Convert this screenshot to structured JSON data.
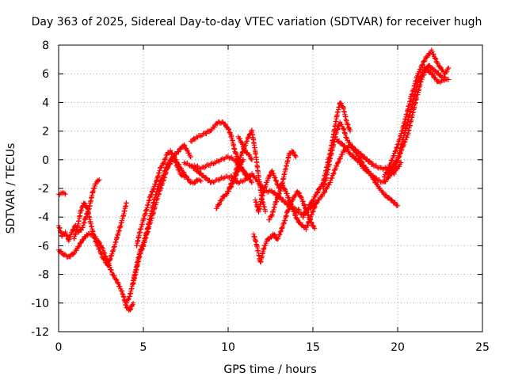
{
  "chart_data": {
    "type": "scatter",
    "title": "Day 363 of 2025, Sidereal Day-to-day VTEC variation (SDTVAR) for receiver hugh",
    "xlabel": "GPS time / hours",
    "ylabel": "SDTVAR / TECUs",
    "xlim": [
      0,
      25
    ],
    "ylim": [
      -12,
      8
    ],
    "xticks": [
      "0",
      "5",
      "10",
      "15",
      "20",
      "25"
    ],
    "yticks": [
      "-12",
      "-10",
      "-8",
      "-6",
      "-4",
      "-2",
      "0",
      "2",
      "4",
      "6",
      "8"
    ],
    "grid": true,
    "marker": "+",
    "color": "#ff0000",
    "series": [
      {
        "x": [
          0.0,
          0.2,
          0.4,
          0.6,
          0.8,
          1.0,
          1.2,
          1.4,
          1.6,
          1.8,
          2.0,
          2.2,
          2.4
        ],
        "y": [
          -4.6,
          -5.3,
          -5.1,
          -5.6,
          -5.0,
          -4.6,
          -5.0,
          -4.8,
          -4.0,
          -3.4,
          -2.3,
          -1.6,
          -1.4
        ]
      },
      {
        "x": [
          0.0,
          0.3,
          0.6,
          0.9,
          1.1,
          1.4,
          1.7,
          2.0,
          2.3,
          2.6,
          2.9,
          3.2,
          3.5,
          3.8,
          4.0,
          4.2,
          4.4
        ],
        "y": [
          -6.3,
          -6.6,
          -6.8,
          -6.5,
          -6.2,
          -5.6,
          -5.2,
          -5.2,
          -5.6,
          -6.2,
          -7.2,
          -8.0,
          -8.6,
          -9.4,
          -10.3,
          -10.5,
          -10.0
        ]
      },
      {
        "x": [
          0.9,
          1.1,
          1.3,
          1.5,
          1.7,
          1.9,
          2.1,
          2.3,
          2.6,
          2.9,
          3.2,
          3.5,
          3.8,
          4.0
        ],
        "y": [
          -5.5,
          -4.8,
          -3.6,
          -3.0,
          -3.4,
          -4.5,
          -5.4,
          -6.0,
          -6.8,
          -7.4,
          -6.4,
          -5.2,
          -4.0,
          -3.0
        ]
      },
      {
        "x": [
          0.0,
          0.2,
          0.4
        ],
        "y": [
          -2.4,
          -2.3,
          -2.4
        ]
      },
      {
        "x": [
          4.0,
          4.2,
          4.4,
          4.6,
          4.8,
          5.0,
          5.2,
          5.4,
          5.6,
          5.8,
          6.0,
          6.2,
          6.4,
          6.6,
          6.8,
          7.0,
          7.2,
          7.4,
          7.6,
          7.8
        ],
        "y": [
          -10.0,
          -9.5,
          -8.5,
          -7.4,
          -6.4,
          -5.8,
          -5.0,
          -4.0,
          -3.0,
          -2.2,
          -1.5,
          -1.0,
          -0.4,
          0.0,
          0.3,
          0.5,
          0.8,
          1.0,
          0.6,
          0.2
        ]
      },
      {
        "x": [
          4.4,
          4.6,
          4.8,
          5.0,
          5.2,
          5.4,
          5.6,
          5.8,
          6.0,
          6.2,
          6.4,
          6.6,
          6.8,
          7.0,
          7.2,
          7.4,
          7.6,
          7.8,
          8.0,
          8.2,
          8.4
        ],
        "y": [
          -8.6,
          -7.6,
          -6.6,
          -6.0,
          -5.2,
          -4.4,
          -3.6,
          -2.8,
          -2.0,
          -1.4,
          -0.6,
          -0.2,
          0.2,
          -0.2,
          -0.6,
          -1.0,
          -1.3,
          -1.6,
          -1.6,
          -1.4,
          -1.5
        ]
      },
      {
        "x": [
          4.6,
          4.8,
          5.0,
          5.2,
          5.4,
          5.6,
          5.8,
          6.0,
          6.2,
          6.4,
          6.6,
          6.8,
          7.0,
          7.2,
          7.4
        ],
        "y": [
          -6.0,
          -5.0,
          -4.2,
          -3.4,
          -2.6,
          -2.0,
          -1.4,
          -0.6,
          -0.2,
          0.4,
          0.6,
          0.2,
          -0.5,
          -1.0,
          -1.2
        ]
      },
      {
        "x": [
          7.8,
          8.2,
          8.6,
          9.0,
          9.4,
          9.7,
          10.0,
          10.2,
          10.4,
          10.6,
          10.8,
          11.0,
          11.2,
          11.4
        ],
        "y": [
          1.3,
          1.6,
          1.8,
          2.1,
          2.6,
          2.6,
          2.2,
          1.6,
          0.6,
          0.0,
          -0.6,
          -1.0,
          -1.2,
          -1.6
        ]
      },
      {
        "x": [
          7.4,
          7.8,
          8.2,
          8.6,
          9.0,
          9.4,
          9.8,
          10.2,
          10.6,
          11.0,
          11.4,
          11.8,
          12.2,
          12.6,
          13.0,
          13.4,
          13.8,
          14.2
        ],
        "y": [
          -0.2,
          -0.4,
          -0.8,
          -1.2,
          -1.6,
          -1.4,
          -1.2,
          -1.2,
          -1.6,
          -1.4,
          -1.0,
          -1.6,
          -2.2,
          -2.2,
          -2.6,
          -3.0,
          -3.4,
          -3.5
        ]
      },
      {
        "x": [
          8.0,
          8.4,
          8.8,
          9.2,
          9.6,
          10.0,
          10.4,
          10.8,
          11.2
        ],
        "y": [
          -0.4,
          -0.6,
          -0.4,
          -0.2,
          0.0,
          0.2,
          0.0,
          -0.6,
          -1.2
        ]
      },
      {
        "x": [
          9.3,
          9.5,
          9.7,
          9.9,
          10.1,
          10.3,
          10.5,
          10.7,
          10.9
        ],
        "y": [
          -3.4,
          -3.0,
          -2.6,
          -2.4,
          -2.0,
          -1.6,
          -1.0,
          -0.4,
          0.0
        ]
      },
      {
        "x": [
          10.0,
          10.2,
          10.4,
          10.6,
          10.8,
          11.0,
          11.2,
          11.4,
          11.6,
          11.8,
          12.0,
          12.2
        ],
        "y": [
          -2.2,
          -1.6,
          -1.0,
          -0.2,
          0.4,
          1.0,
          1.6,
          2.0,
          0.6,
          -1.2,
          -2.8,
          -3.6
        ]
      },
      {
        "x": [
          10.6,
          10.8,
          11.0,
          11.2,
          11.4
        ],
        "y": [
          1.6,
          1.2,
          0.6,
          0.4,
          0.0
        ]
      },
      {
        "x": [
          11.5,
          11.7,
          11.9,
          12.1,
          12.3,
          12.5,
          12.7,
          12.9,
          13.1,
          13.3,
          13.5,
          13.7,
          13.9,
          14.1,
          14.3,
          14.5,
          14.7,
          14.9,
          15.1
        ],
        "y": [
          -5.2,
          -6.0,
          -7.2,
          -6.2,
          -5.6,
          -5.4,
          -5.2,
          -5.6,
          -5.0,
          -4.4,
          -3.6,
          -3.0,
          -2.6,
          -2.2,
          -2.6,
          -3.2,
          -3.8,
          -4.4,
          -4.8
        ]
      },
      {
        "x": [
          11.6,
          11.8,
          12.0,
          12.2,
          12.4,
          12.6,
          12.8,
          13.0,
          13.2,
          13.4,
          13.6,
          13.8,
          14.0
        ],
        "y": [
          -2.8,
          -3.6,
          -2.6,
          -1.8,
          -1.2,
          -0.8,
          -1.4,
          -2.0,
          -1.6,
          -0.6,
          0.4,
          0.6,
          0.2
        ]
      },
      {
        "x": [
          12.4,
          12.6,
          12.8,
          13.0,
          13.2,
          13.4,
          13.6,
          13.8,
          14.0,
          14.2,
          14.4,
          14.6,
          14.8,
          15.0,
          15.2
        ],
        "y": [
          -4.2,
          -3.8,
          -3.0,
          -2.4,
          -1.8,
          -2.2,
          -2.8,
          -3.4,
          -4.0,
          -4.4,
          -4.6,
          -4.8,
          -4.2,
          -3.6,
          -3.0
        ]
      },
      {
        "x": [
          14.4,
          14.6,
          14.8,
          15.0,
          15.2,
          15.4,
          15.6,
          15.8,
          16.0,
          16.2,
          16.4,
          16.6,
          16.8,
          17.0,
          17.2
        ],
        "y": [
          -4.0,
          -3.6,
          -3.2,
          -2.8,
          -2.4,
          -2.0,
          -1.6,
          -0.6,
          0.4,
          1.6,
          3.0,
          4.0,
          3.6,
          2.6,
          2.0
        ]
      },
      {
        "x": [
          14.0,
          14.4,
          14.8,
          15.2,
          15.6,
          16.0,
          16.4,
          16.8,
          17.2,
          17.6,
          18.0,
          18.4,
          18.8,
          19.2,
          19.6,
          20.0
        ],
        "y": [
          -3.6,
          -3.8,
          -3.4,
          -3.0,
          -2.4,
          -1.6,
          -0.4,
          0.6,
          1.0,
          0.4,
          -0.4,
          -1.0,
          -1.8,
          -2.4,
          -2.8,
          -3.2
        ]
      },
      {
        "x": [
          15.6,
          15.8,
          16.0,
          16.2,
          16.4,
          16.6,
          16.8,
          17.0,
          17.4,
          17.8,
          18.2,
          18.6,
          19.0,
          19.4,
          19.8
        ],
        "y": [
          -2.0,
          -1.2,
          0.0,
          1.0,
          2.0,
          2.6,
          2.2,
          1.4,
          0.8,
          0.4,
          0.0,
          -0.4,
          -0.6,
          -0.6,
          -1.0
        ]
      },
      {
        "x": [
          16.4,
          16.8,
          17.2,
          17.6,
          18.0,
          18.4,
          18.8,
          19.2,
          19.6,
          20.0,
          20.2
        ],
        "y": [
          1.4,
          1.0,
          0.4,
          0.0,
          -0.6,
          -1.0,
          -1.4,
          -1.6,
          -1.0,
          -0.6,
          -0.2
        ]
      },
      {
        "x": [
          19.2,
          19.6,
          20.0,
          20.4,
          20.8,
          21.2,
          21.6,
          22.0,
          22.4,
          22.8,
          23.0
        ],
        "y": [
          -1.2,
          -0.2,
          1.0,
          2.6,
          4.4,
          6.0,
          7.0,
          7.6,
          6.6,
          6.0,
          6.4
        ]
      },
      {
        "x": [
          19.4,
          19.8,
          20.2,
          20.6,
          21.0,
          21.4,
          21.8,
          22.2,
          22.6,
          23.0
        ],
        "y": [
          -1.0,
          -0.6,
          0.6,
          1.8,
          3.8,
          5.6,
          6.6,
          6.2,
          5.8,
          5.6
        ]
      },
      {
        "x": [
          19.6,
          20.0,
          20.4,
          20.8,
          21.2,
          21.6,
          22.0,
          22.4,
          22.8
        ],
        "y": [
          -0.6,
          0.0,
          1.8,
          3.6,
          5.4,
          6.4,
          6.0,
          5.4,
          5.6
        ]
      }
    ]
  }
}
